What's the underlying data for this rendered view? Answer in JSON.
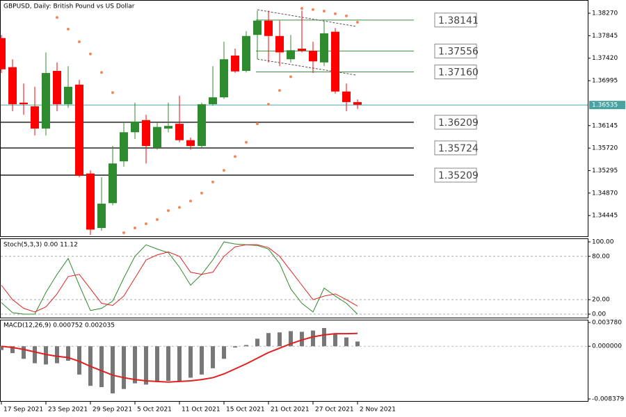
{
  "chart_data": [
    {
      "type": "candlestick",
      "title": "GBPUSD, Daily:  British Pound vs US Dollar",
      "categories": [
        "17 Sep 2021",
        null,
        null,
        null,
        "23 Sep 2021",
        null,
        null,
        null,
        "29 Sep 2021",
        null,
        null,
        null,
        "5 Oct 2021",
        null,
        null,
        null,
        "11 Oct 2021",
        null,
        null,
        null,
        "15 Oct 2021",
        null,
        null,
        null,
        "21 Oct 2021",
        null,
        null,
        null,
        "27 Oct 2021",
        null,
        null,
        null,
        "2 Nov 2021"
      ],
      "open": [
        1.378,
        1.3725,
        1.3658,
        1.3651,
        1.3609,
        1.3718,
        1.3655,
        1.3692,
        1.3524,
        1.3421,
        1.3468,
        1.3547,
        1.3602,
        1.3625,
        1.3573,
        1.3609,
        1.3618,
        1.3587,
        1.3576,
        1.3655,
        1.3668,
        1.3747,
        1.3718,
        1.3786,
        1.3813,
        1.3784,
        1.374,
        1.376,
        1.3756,
        1.3734,
        1.3792,
        1.3679,
        1.3659
      ],
      "high": [
        1.3786,
        1.374,
        1.3694,
        1.3688,
        1.3753,
        1.3734,
        1.3727,
        1.3701,
        1.353,
        1.3517,
        1.3576,
        1.3622,
        1.3658,
        1.3635,
        1.3622,
        1.3658,
        1.3671,
        1.3592,
        1.3658,
        1.3727,
        1.3773,
        1.376,
        1.3793,
        1.3832,
        1.3832,
        1.3813,
        1.3786,
        1.3832,
        1.3773,
        1.3813,
        1.3799,
        1.3694,
        1.3664
      ],
      "low": [
        1.3714,
        1.3642,
        1.3635,
        1.3596,
        1.3596,
        1.3642,
        1.3648,
        1.3517,
        1.3408,
        1.3416,
        1.3464,
        1.3537,
        1.3589,
        1.3543,
        1.3569,
        1.3602,
        1.3583,
        1.3569,
        1.3573,
        1.3652,
        1.3665,
        1.3714,
        1.3715,
        1.374,
        1.3734,
        1.3727,
        1.3734,
        1.3753,
        1.3714,
        1.3727,
        1.3675,
        1.3642,
        1.3646
      ],
      "close": [
        1.3721,
        1.3655,
        1.3655,
        1.3609,
        1.3714,
        1.3655,
        1.3688,
        1.352,
        1.3418,
        1.3467,
        1.3543,
        1.3602,
        1.3622,
        1.3576,
        1.3612,
        1.3614,
        1.3587,
        1.3576,
        1.3655,
        1.3668,
        1.374,
        1.3717,
        1.3784,
        1.3813,
        1.3784,
        1.3753,
        1.3757,
        1.3756,
        1.3736,
        1.3789,
        1.3679,
        1.3659,
        1.3654
      ],
      "up_color": "#2e8b2e",
      "down_color": "#ff0000",
      "psar": {
        "color": "#f08a5d",
        "values": [
          null,
          null,
          null,
          null,
          null,
          1.3819,
          1.3797,
          1.3773,
          1.375,
          1.3715,
          1.3677,
          1.3412,
          1.3421,
          1.3429,
          1.3437,
          1.3454,
          1.346,
          1.3472,
          1.3487,
          1.3508,
          1.353,
          1.3556,
          1.3583,
          1.3618,
          1.3655,
          1.3681,
          1.3707,
          1.3836,
          1.3834,
          1.3831,
          1.3826,
          1.3822,
          1.381
        ]
      },
      "ylim": [
        1.3404,
        1.3852
      ],
      "yticks": [
        {
          "value": 1.3827,
          "label": "1.38270"
        },
        {
          "value": 1.37845,
          "label": "1.37845"
        },
        {
          "value": 1.3742,
          "label": "1.37420"
        },
        {
          "value": 1.36995,
          "label": "1.36995"
        },
        {
          "value": 1.36145,
          "label": "1.36145"
        },
        {
          "value": 1.3572,
          "label": "1.35720"
        },
        {
          "value": 1.35295,
          "label": "1.35295"
        },
        {
          "value": 1.3487,
          "label": "1.34870"
        },
        {
          "value": 1.34445,
          "label": "1.34445"
        }
      ],
      "last_price": {
        "value": 1.36535,
        "label": "1.36535",
        "color": "#4aa3a3"
      },
      "levels": [
        {
          "value": 1.38141,
          "label": "1.38141",
          "color": "#3c8c3c"
        },
        {
          "value": 1.37556,
          "label": "1.37556",
          "color": "#3c8c3c"
        },
        {
          "value": 1.3716,
          "label": "1.37160",
          "color": "#3c8c3c"
        },
        {
          "value": 1.36209,
          "label": "1.36209",
          "color": "#555555"
        },
        {
          "value": 1.35724,
          "label": "1.35724",
          "color": "#555555"
        },
        {
          "value": 1.35209,
          "label": "1.35209",
          "color": "#555555"
        }
      ]
    },
    {
      "type": "line",
      "title": "Stoch(5,3,3) 0.00 11.12",
      "series": [
        {
          "color": "#2e8b2e",
          "values": [
            16,
            2,
            0,
            0,
            30,
            55,
            77,
            40,
            5,
            8,
            18,
            50,
            80,
            96,
            90,
            85,
            65,
            40,
            55,
            75,
            100,
            97,
            96,
            95,
            90,
            70,
            35,
            15,
            3,
            36,
            25,
            15,
            0
          ]
        },
        {
          "color": "#e02020",
          "values": [
            40,
            20,
            8,
            3,
            10,
            28,
            52,
            55,
            35,
            15,
            12,
            25,
            50,
            75,
            82,
            86,
            80,
            58,
            55,
            58,
            80,
            93,
            96,
            96,
            92,
            80,
            60,
            40,
            20,
            25,
            28,
            20,
            11.12
          ]
        }
      ],
      "ylim": [
        -5.8,
        104.8
      ],
      "yticks": [
        {
          "value": 100,
          "label": "100.00"
        },
        {
          "value": 80,
          "label": "80.00"
        },
        {
          "value": 20,
          "label": "20.00"
        },
        {
          "value": 0,
          "label": "0.00"
        }
      ]
    },
    {
      "type": "macd",
      "title": "MACD(12,26,9) 0.000752 0.002035",
      "histogram": {
        "color": "#777777",
        "values": [
          -0.0006,
          -0.0011,
          -0.002,
          -0.0027,
          -0.0029,
          -0.0027,
          -0.0023,
          -0.0045,
          -0.0063,
          -0.0065,
          -0.0075,
          -0.0068,
          -0.0059,
          -0.0061,
          -0.0057,
          -0.0055,
          -0.0055,
          -0.005,
          -0.0045,
          -0.0035,
          -0.002,
          -0.0002,
          0.0002,
          0.0012,
          0.0021,
          0.0022,
          0.0024,
          0.0023,
          0.0025,
          0.0029,
          0.002,
          0.0014,
          0.000752
        ]
      },
      "signal": {
        "color": "#e02020",
        "values": [
          0,
          -0.0002,
          -0.0005,
          -0.0009,
          -0.0013,
          -0.0016,
          -0.0018,
          -0.0024,
          -0.0032,
          -0.0039,
          -0.0046,
          -0.005,
          -0.0053,
          -0.0055,
          -0.0056,
          -0.0057,
          -0.0056,
          -0.0055,
          -0.0053,
          -0.005,
          -0.0044,
          -0.0036,
          -0.0028,
          -0.0019,
          -0.001,
          -0.0003,
          0.0004,
          0.001,
          0.0015,
          0.0018,
          0.002,
          0.002,
          0.002035
        ]
      },
      "ylim": [
        -0.008821,
        0.004222
      ],
      "yticks": [
        {
          "value": 0.00378,
          "label": "0.003780"
        },
        {
          "value": 0,
          "label": "0.000000"
        },
        {
          "value": -0.008379,
          "label": "-0.008379"
        }
      ]
    }
  ]
}
